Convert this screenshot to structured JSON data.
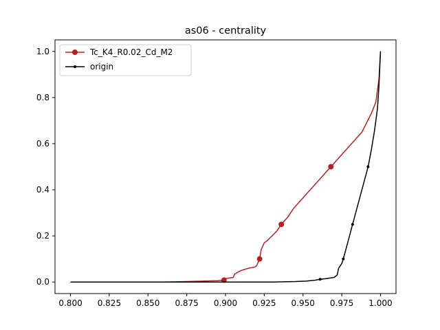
{
  "chart_data": {
    "type": "line",
    "title": "as06 - centrality",
    "xlabel": "",
    "ylabel": "",
    "xlim": [
      0.79,
      1.01
    ],
    "ylim": [
      -0.05,
      1.05
    ],
    "x_ticks": [
      "0.800",
      "0.825",
      "0.850",
      "0.875",
      "0.900",
      "0.925",
      "0.950",
      "0.975",
      "1.000"
    ],
    "y_ticks": [
      "0.0",
      "0.2",
      "0.4",
      "0.6",
      "0.8",
      "1.0"
    ],
    "grid": false,
    "legend_position": "upper-left",
    "series": [
      {
        "name": "Tc_K4_R0.02_Cd_M2",
        "color": "#b22222",
        "points": [
          [
            0.8,
            0.0
          ],
          [
            0.86,
            0.0
          ],
          [
            0.875,
            0.002
          ],
          [
            0.885,
            0.004
          ],
          [
            0.895,
            0.006
          ],
          [
            0.899,
            0.008
          ],
          [
            0.9,
            0.015
          ],
          [
            0.905,
            0.02
          ],
          [
            0.906,
            0.035
          ],
          [
            0.91,
            0.05
          ],
          [
            0.915,
            0.06
          ],
          [
            0.919,
            0.065
          ],
          [
            0.92,
            0.07
          ],
          [
            0.921,
            0.085
          ],
          [
            0.922,
            0.1
          ],
          [
            0.923,
            0.14
          ],
          [
            0.925,
            0.17
          ],
          [
            0.927,
            0.18
          ],
          [
            0.93,
            0.2
          ],
          [
            0.933,
            0.22
          ],
          [
            0.936,
            0.25
          ],
          [
            0.94,
            0.28
          ],
          [
            0.944,
            0.32
          ],
          [
            0.948,
            0.35
          ],
          [
            0.952,
            0.38
          ],
          [
            0.956,
            0.41
          ],
          [
            0.96,
            0.44
          ],
          [
            0.964,
            0.47
          ],
          [
            0.968,
            0.5
          ],
          [
            0.972,
            0.53
          ],
          [
            0.976,
            0.56
          ],
          [
            0.98,
            0.59
          ],
          [
            0.984,
            0.62
          ],
          [
            0.988,
            0.65
          ],
          [
            0.991,
            0.69
          ],
          [
            0.994,
            0.73
          ],
          [
            0.997,
            0.78
          ],
          [
            0.998,
            0.83
          ],
          [
            0.999,
            0.88
          ],
          [
            1.0,
            1.0
          ]
        ],
        "markers": [
          [
            0.899,
            0.008
          ],
          [
            0.922,
            0.1
          ],
          [
            0.936,
            0.25
          ],
          [
            0.968,
            0.5
          ]
        ],
        "marker_size": 4
      },
      {
        "name": "origin",
        "color": "#000000",
        "points": [
          [
            0.8,
            0.0
          ],
          [
            0.93,
            0.0
          ],
          [
            0.945,
            0.002
          ],
          [
            0.952,
            0.004
          ],
          [
            0.958,
            0.008
          ],
          [
            0.961,
            0.012
          ],
          [
            0.965,
            0.015
          ],
          [
            0.97,
            0.02
          ],
          [
            0.972,
            0.03
          ],
          [
            0.973,
            0.06
          ],
          [
            0.975,
            0.08
          ],
          [
            0.976,
            0.1
          ],
          [
            0.978,
            0.15
          ],
          [
            0.98,
            0.2
          ],
          [
            0.982,
            0.25
          ],
          [
            0.984,
            0.3
          ],
          [
            0.986,
            0.35
          ],
          [
            0.988,
            0.4
          ],
          [
            0.99,
            0.45
          ],
          [
            0.992,
            0.5
          ],
          [
            0.994,
            0.57
          ],
          [
            0.996,
            0.65
          ],
          [
            0.998,
            0.75
          ],
          [
            0.999,
            0.85
          ],
          [
            1.0,
            1.0
          ]
        ],
        "markers": [
          [
            0.961,
            0.012
          ],
          [
            0.976,
            0.1
          ],
          [
            0.982,
            0.25
          ],
          [
            0.992,
            0.5
          ]
        ],
        "marker_size": 2
      }
    ]
  }
}
